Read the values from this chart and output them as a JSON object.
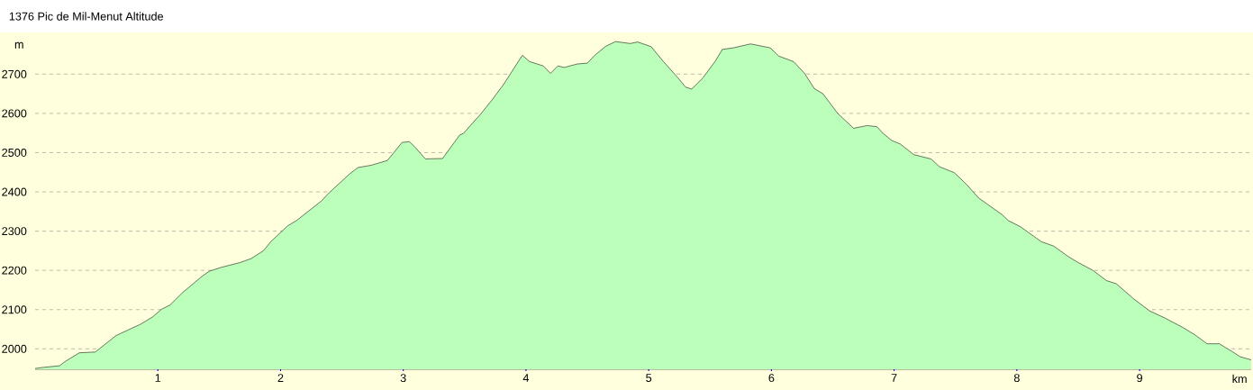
{
  "chart_data": {
    "type": "area",
    "title": "1376 Pic de Mil-Menut Altitude",
    "xlabel": "km",
    "ylabel": "m",
    "x": [
      0,
      0.07,
      0.2,
      0.24,
      0.36,
      0.49,
      0.66,
      0.86,
      0.96,
      1.03,
      1.1,
      1.2,
      1.36,
      1.42,
      1.52,
      1.67,
      1.76,
      1.86,
      1.92,
      2.06,
      2.13,
      2.33,
      2.4,
      2.56,
      2.63,
      2.74,
      2.87,
      2.92,
      2.99,
      3.05,
      3.09,
      3.18,
      3.32,
      3.46,
      3.49,
      3.63,
      3.72,
      3.82,
      3.97,
      4.03,
      4.14,
      4.2,
      4.26,
      4.31,
      4.42,
      4.5,
      4.56,
      4.65,
      4.73,
      4.85,
      4.91,
      5.02,
      5.12,
      5.24,
      5.3,
      5.35,
      5.44,
      5.54,
      5.6,
      5.69,
      5.83,
      5.99,
      6.06,
      6.18,
      6.27,
      6.35,
      6.42,
      6.54,
      6.67,
      6.78,
      6.86,
      6.91,
      6.98,
      7.05,
      7.16,
      7.3,
      7.37,
      7.49,
      7.59,
      7.69,
      7.88,
      7.93,
      8.03,
      8.2,
      8.3,
      8.42,
      8.5,
      8.62,
      8.73,
      8.81,
      8.95,
      9.08,
      9.21,
      9.35,
      9.45,
      9.55,
      9.65,
      9.75,
      9.82,
      9.91
    ],
    "series": [
      {
        "color": "#bbffbb",
        "values": [
          1950,
          1953,
          1957,
          1967,
          1990,
          1992,
          2034,
          2063,
          2082,
          2101,
          2112,
          2143,
          2185,
          2198,
          2208,
          2220,
          2230,
          2250,
          2273,
          2314,
          2327,
          2376,
          2399,
          2445,
          2462,
          2468,
          2480,
          2499,
          2526,
          2528,
          2516,
          2484,
          2485,
          2545,
          2549,
          2598,
          2633,
          2675,
          2748,
          2732,
          2721,
          2702,
          2721,
          2717,
          2726,
          2728,
          2748,
          2771,
          2783,
          2778,
          2782,
          2770,
          2732,
          2690,
          2667,
          2662,
          2690,
          2732,
          2763,
          2767,
          2777,
          2767,
          2746,
          2732,
          2702,
          2663,
          2650,
          2600,
          2562,
          2569,
          2566,
          2549,
          2531,
          2522,
          2495,
          2484,
          2464,
          2449,
          2419,
          2384,
          2342,
          2327,
          2311,
          2273,
          2262,
          2235,
          2220,
          2200,
          2174,
          2166,
          2128,
          2097,
          2078,
          2055,
          2036,
          2013,
          2013,
          1994,
          1980,
          1972
        ]
      }
    ],
    "xlim": [
      0,
      9.91
    ],
    "ylim": [
      1948,
      2804
    ],
    "xticks": [
      1,
      2,
      3,
      4,
      5,
      6,
      7,
      8,
      9
    ],
    "yticks": [
      2000,
      2100,
      2200,
      2300,
      2400,
      2500,
      2600,
      2700
    ],
    "grid": "y"
  }
}
